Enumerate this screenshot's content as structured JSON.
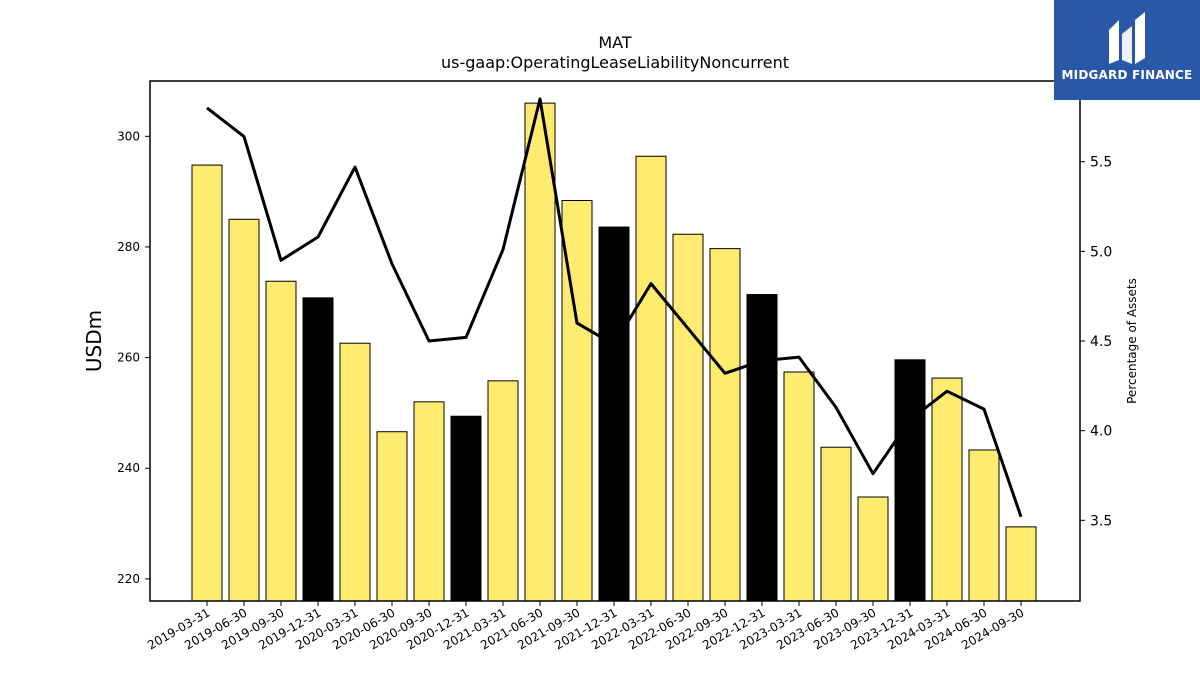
{
  "chart_data": {
    "type": "bar",
    "title": "MAT",
    "subtitle": "us-gaap:OperatingLeaseLiabilityNoncurrent",
    "ylabel": "USDm",
    "y2label": "Percentage of Assets",
    "ylim": [
      216,
      310
    ],
    "y2lim": [
      3.05,
      5.95
    ],
    "yticks": [
      220,
      240,
      260,
      280,
      300
    ],
    "y2ticks": [
      3.5,
      4.0,
      4.5,
      5.0,
      5.5
    ],
    "categories": [
      "2019-03-31",
      "2019-06-30",
      "2019-09-30",
      "2019-12-31",
      "2020-03-31",
      "2020-06-30",
      "2020-09-30",
      "2020-12-31",
      "2021-03-31",
      "2021-06-30",
      "2021-09-30",
      "2021-12-31",
      "2022-03-31",
      "2022-06-30",
      "2022-09-30",
      "2022-12-31",
      "2023-03-31",
      "2023-06-30",
      "2023-09-30",
      "2023-12-31",
      "2024-03-31",
      "2024-06-30",
      "2024-09-30"
    ],
    "series": [
      {
        "type": "bar",
        "values": [
          294.8,
          285.0,
          273.8,
          270.8,
          262.6,
          246.6,
          252.0,
          249.4,
          255.8,
          306.0,
          288.4,
          283.6,
          296.4,
          282.3,
          279.7,
          271.4,
          257.4,
          243.8,
          234.8,
          259.6,
          256.3,
          243.3,
          229.4
        ],
        "highlight": [
          false,
          false,
          false,
          true,
          false,
          false,
          false,
          true,
          false,
          false,
          false,
          true,
          false,
          false,
          false,
          true,
          false,
          false,
          false,
          true,
          false,
          false,
          false
        ]
      },
      {
        "type": "line",
        "axis": "right",
        "values": [
          5.8,
          5.64,
          4.95,
          5.08,
          5.47,
          4.93,
          4.5,
          4.52,
          5.01,
          5.85,
          4.6,
          4.48,
          4.82,
          4.57,
          4.32,
          4.39,
          4.41,
          4.13,
          3.76,
          4.06,
          4.22,
          4.12,
          3.52
        ]
      }
    ],
    "colors": {
      "bar": "#ffeb70",
      "bar_highlight": "#000000",
      "line": "#000000"
    },
    "grid": false
  },
  "logo": {
    "text": "MIDGARD FINANCE",
    "bg": "#2b57a8"
  }
}
